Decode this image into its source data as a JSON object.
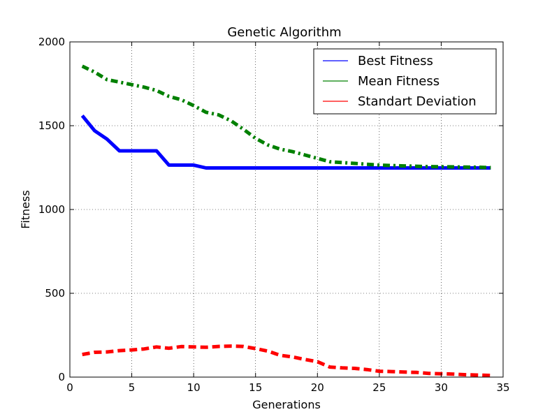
{
  "chart_data": {
    "type": "line",
    "title": "Genetic Algorithm",
    "xlabel": "Generations",
    "ylabel": "Fitness",
    "xlim": [
      0,
      35
    ],
    "ylim": [
      0,
      2000
    ],
    "xticks": [
      0,
      5,
      10,
      15,
      20,
      25,
      30,
      35
    ],
    "yticks": [
      0,
      500,
      1000,
      1500,
      2000
    ],
    "grid": true,
    "legend_position": "top-right",
    "x": [
      1,
      2,
      3,
      4,
      5,
      6,
      7,
      8,
      9,
      10,
      11,
      12,
      13,
      14,
      15,
      16,
      17,
      18,
      19,
      20,
      21,
      22,
      23,
      24,
      25,
      26,
      27,
      28,
      29,
      30,
      31,
      32,
      33,
      34
    ],
    "series": [
      {
        "name": "Best Fitness",
        "color": "#0000ff",
        "style": "solid",
        "values": [
          1560,
          1470,
          1420,
          1350,
          1350,
          1350,
          1350,
          1265,
          1265,
          1265,
          1248,
          1248,
          1248,
          1248,
          1248,
          1248,
          1248,
          1248,
          1248,
          1248,
          1248,
          1248,
          1248,
          1248,
          1248,
          1248,
          1248,
          1248,
          1248,
          1248,
          1248,
          1248,
          1248,
          1248
        ]
      },
      {
        "name": "Mean Fitness",
        "color": "#008000",
        "style": "dashdot",
        "values": [
          1855,
          1820,
          1775,
          1760,
          1745,
          1730,
          1710,
          1675,
          1655,
          1620,
          1580,
          1565,
          1530,
          1480,
          1425,
          1385,
          1360,
          1345,
          1325,
          1305,
          1285,
          1280,
          1275,
          1270,
          1265,
          1262,
          1260,
          1258,
          1256,
          1255,
          1254,
          1253,
          1252,
          1250
        ]
      },
      {
        "name": "Standart Deviation",
        "color": "#ff0000",
        "style": "dashed",
        "values": [
          135,
          148,
          150,
          158,
          162,
          168,
          180,
          172,
          182,
          180,
          178,
          183,
          185,
          183,
          170,
          155,
          130,
          120,
          105,
          92,
          60,
          55,
          52,
          45,
          35,
          33,
          30,
          28,
          22,
          20,
          18,
          14,
          12,
          10
        ]
      }
    ]
  }
}
